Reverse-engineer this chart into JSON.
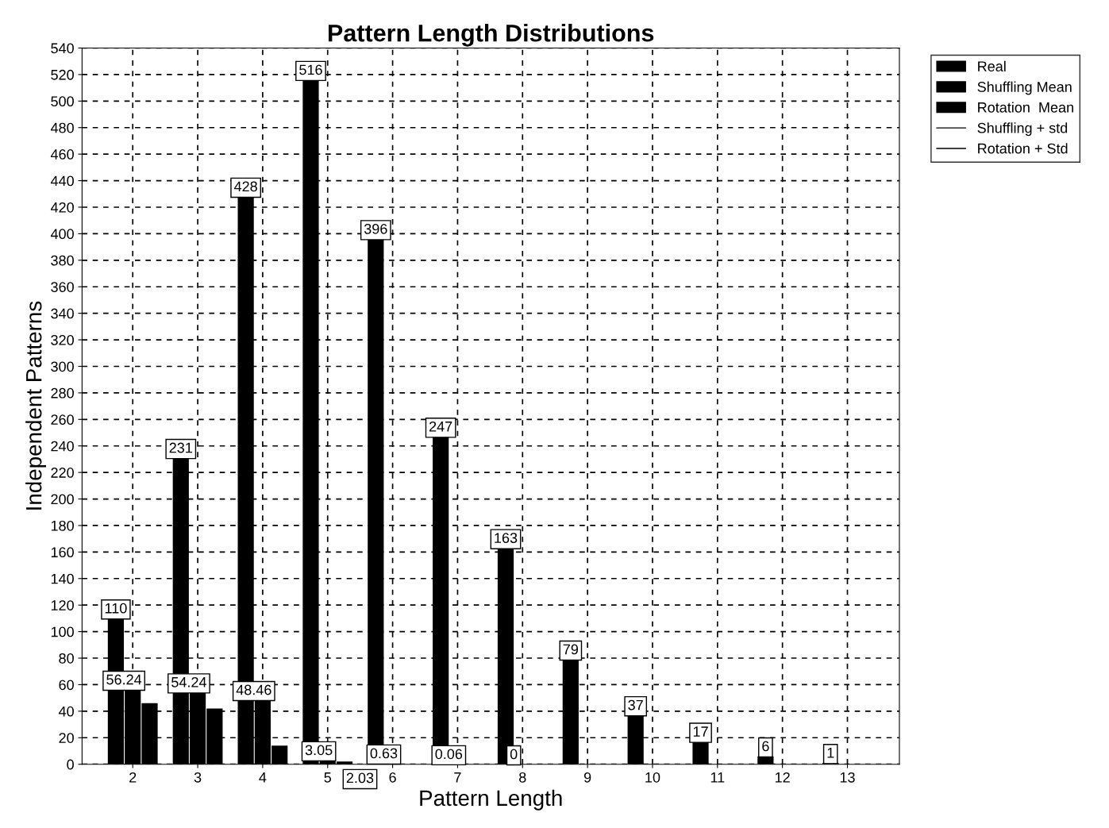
{
  "chart_data": {
    "type": "bar",
    "title": "Pattern Length Distributions",
    "xlabel": "Pattern Length",
    "ylabel": "Independent Patterns",
    "categories": [
      "2",
      "3",
      "4",
      "5",
      "6",
      "7",
      "8",
      "9",
      "10",
      "11",
      "12",
      "13"
    ],
    "series": [
      {
        "name": "Real",
        "color": "#000000",
        "values": [
          110,
          231,
          428,
          516,
          396,
          247,
          163,
          79,
          37,
          17,
          6,
          1
        ],
        "value_labels": [
          "110",
          "231",
          "428",
          "516",
          "396",
          "247",
          "163",
          "79",
          "37",
          "17",
          "6",
          "1"
        ]
      },
      {
        "name": "Shuffling Mean",
        "color": "#000000",
        "values": [
          56.24,
          54.24,
          48.46,
          3.05,
          0.63,
          0.06,
          0,
          0,
          0,
          0,
          0,
          0
        ],
        "value_labels": [
          "56.24",
          "54.24",
          "48.46",
          "3.05",
          "0.63",
          "0.06",
          "0",
          null,
          null,
          null,
          null,
          null
        ]
      },
      {
        "name": "Rotation  Mean",
        "color": "#000000",
        "values": [
          46,
          42,
          14,
          2.03,
          0,
          0,
          0,
          0,
          0,
          0,
          0,
          0
        ],
        "value_labels": [
          null,
          null,
          null,
          "2.03",
          null,
          null,
          null,
          null,
          null,
          null,
          null,
          null
        ]
      },
      {
        "name": "Shuffling + std",
        "type": "line",
        "color": "#000000",
        "values": [
          null,
          null,
          null,
          null,
          null,
          null,
          null,
          null,
          null,
          null,
          null,
          null
        ]
      },
      {
        "name": "Rotation + Std",
        "type": "line",
        "color": "#000000",
        "values": [
          null,
          null,
          null,
          null,
          null,
          null,
          null,
          null,
          null,
          null,
          null,
          null
        ]
      }
    ],
    "ylim": [
      0,
      540
    ],
    "yticks": [
      0,
      20,
      40,
      60,
      80,
      100,
      120,
      140,
      160,
      180,
      200,
      220,
      240,
      260,
      280,
      300,
      320,
      340,
      360,
      380,
      400,
      420,
      440,
      460,
      480,
      500,
      520,
      540
    ],
    "grid": true,
    "legend": "top right"
  }
}
